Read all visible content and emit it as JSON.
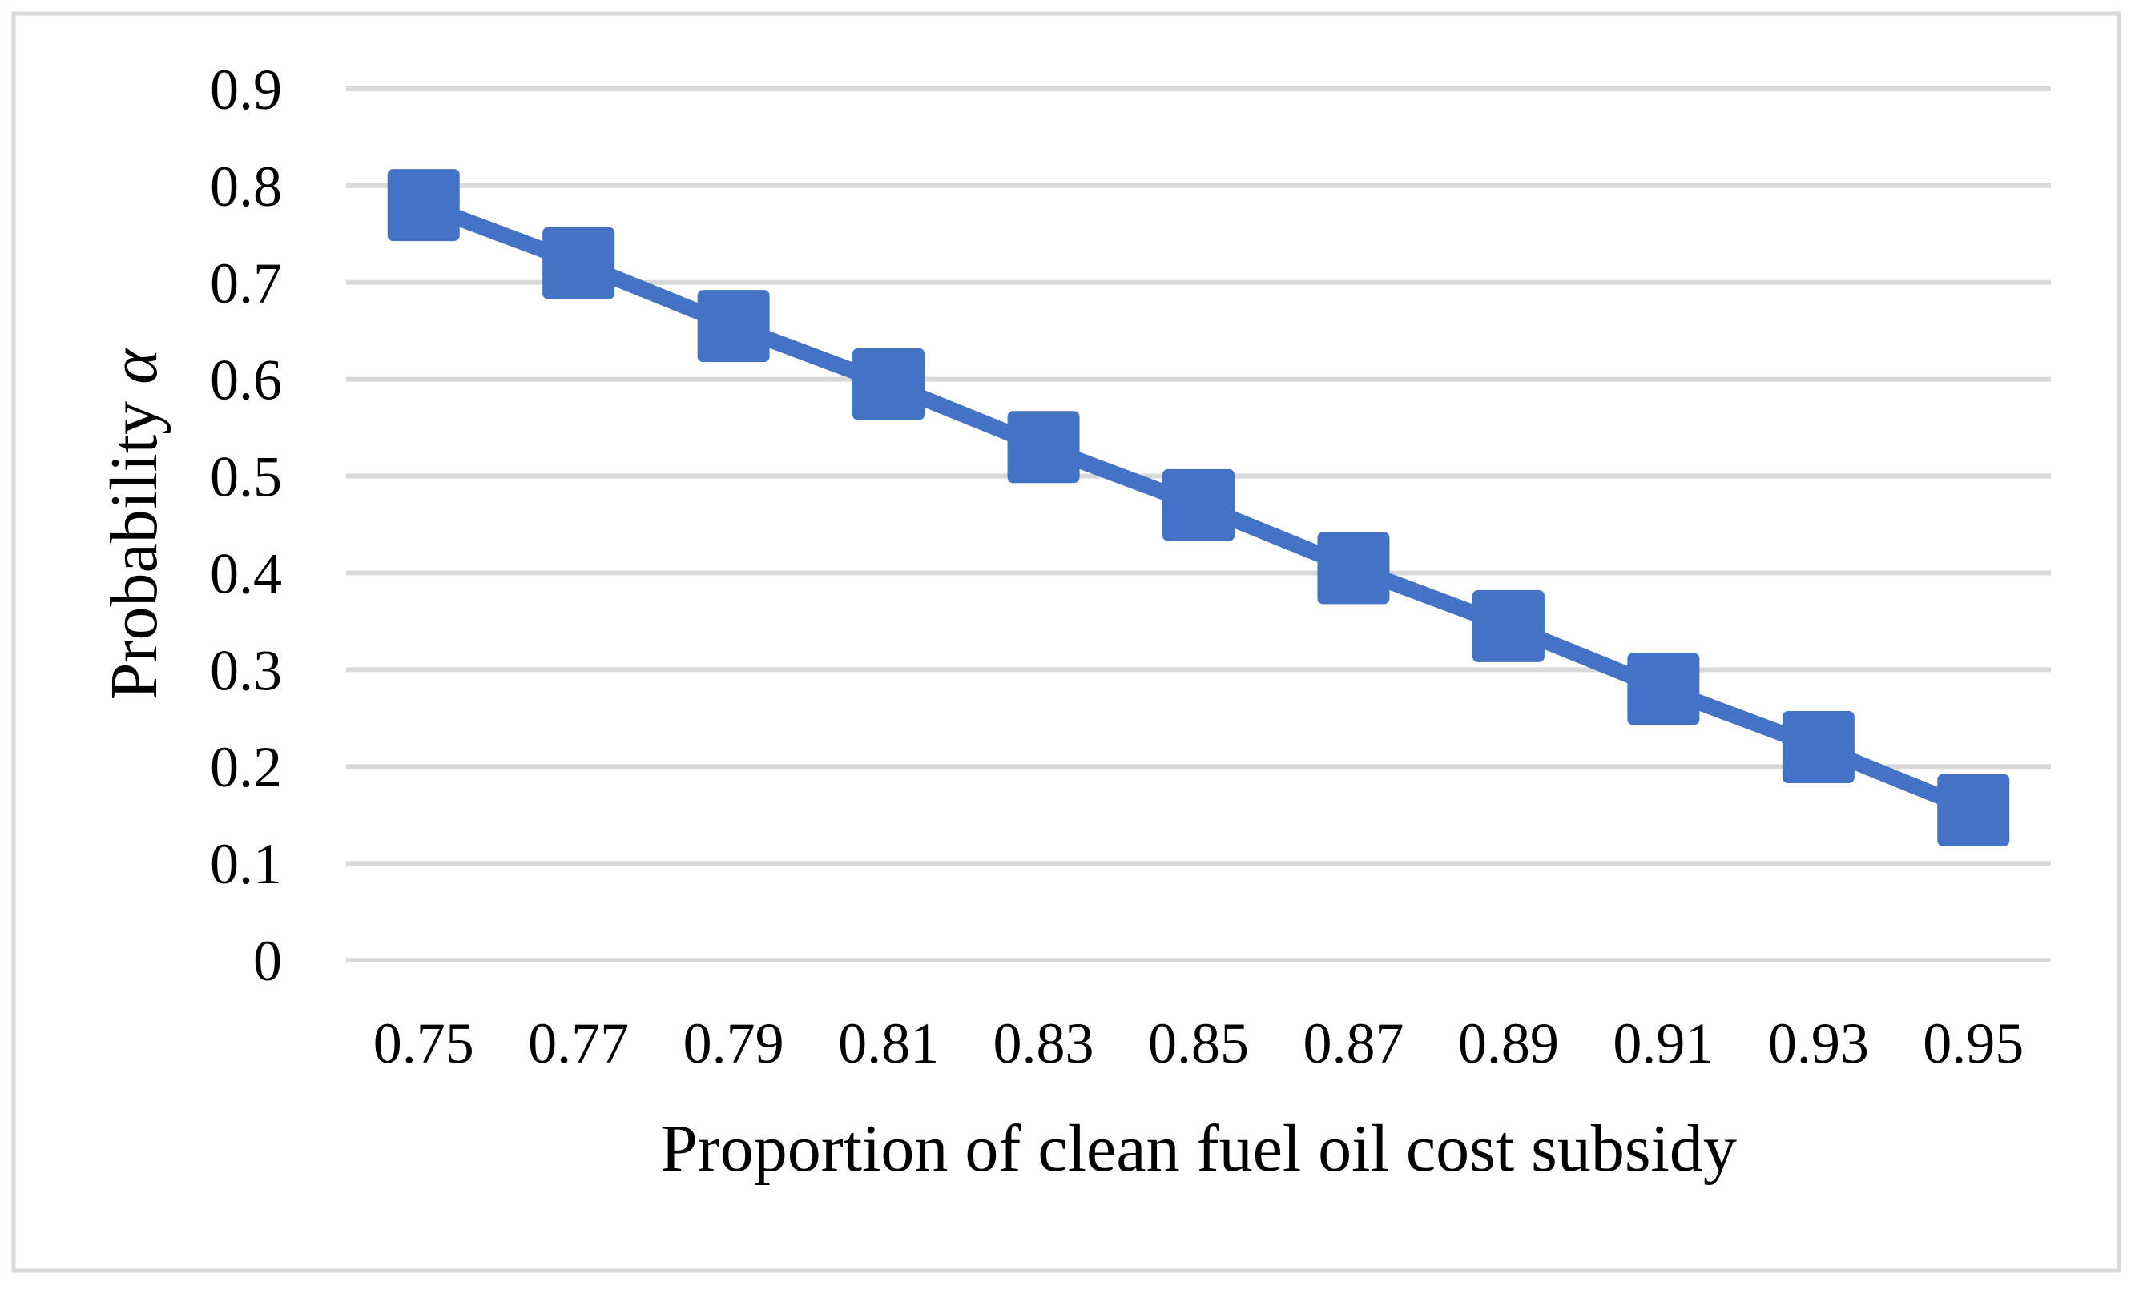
{
  "chart_data": {
    "type": "line",
    "title": "",
    "x": [
      0.75,
      0.77,
      0.79,
      0.81,
      0.83,
      0.85,
      0.87,
      0.89,
      0.91,
      0.93,
      0.95
    ],
    "xtick_labels": [
      "0.75",
      "0.77",
      "0.79",
      "0.81",
      "0.83",
      "0.85",
      "0.87",
      "0.89",
      "0.91",
      "0.93",
      "0.95"
    ],
    "series": [
      {
        "name": "Probability α",
        "values": [
          0.78,
          0.72,
          0.655,
          0.595,
          0.53,
          0.47,
          0.405,
          0.345,
          0.28,
          0.22,
          0.155
        ]
      }
    ],
    "xlabel": "Proportion of clean fuel oil cost subsidy",
    "ylabel": "Probability α",
    "ylabel_parts": [
      "Probability ",
      "α"
    ],
    "ylim": [
      0,
      0.9
    ],
    "ytick_values": [
      0,
      0.1,
      0.2,
      0.3,
      0.4,
      0.5,
      0.6,
      0.7,
      0.8,
      0.9
    ],
    "ytick_labels": [
      "0",
      "0.1",
      "0.2",
      "0.3",
      "0.4",
      "0.5",
      "0.6",
      "0.7",
      "0.8",
      "0.9"
    ],
    "grid": "horizontal",
    "legend_position": "none",
    "marker": "square",
    "colors": {
      "series": "#4472C4",
      "gridlines": "#D9D9D9",
      "plot_border": "#D9D9D9",
      "text": "#000000",
      "background": "#FFFFFF"
    }
  }
}
